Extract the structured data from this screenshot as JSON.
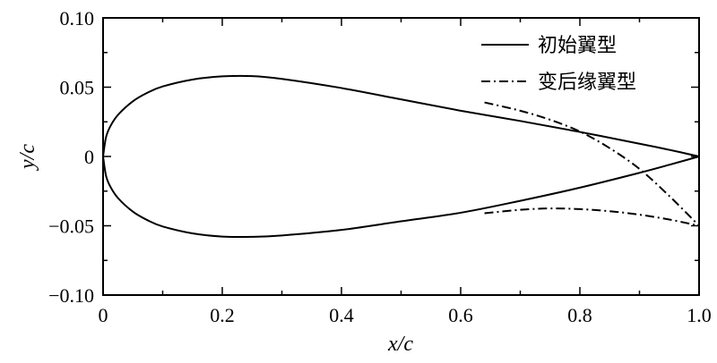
{
  "chart_data": {
    "type": "line",
    "xlabel": "x/c",
    "ylabel": "y/c",
    "xlim": [
      0,
      1.0
    ],
    "ylim": [
      -0.1,
      0.1
    ],
    "x_ticks": [
      {
        "value": 0,
        "label": "0"
      },
      {
        "value": 0.2,
        "label": "0.2"
      },
      {
        "value": 0.4,
        "label": "0.4"
      },
      {
        "value": 0.6,
        "label": "0.6"
      },
      {
        "value": 0.8,
        "label": "0.8"
      },
      {
        "value": 1.0,
        "label": "1.0"
      }
    ],
    "y_ticks": [
      {
        "value": 0.1,
        "label": "0.10"
      },
      {
        "value": 0.05,
        "label": "0.05"
      },
      {
        "value": 0,
        "label": "0"
      },
      {
        "value": -0.05,
        "label": "-0.05"
      },
      {
        "value": -0.1,
        "label": "-0.10"
      }
    ],
    "grid": false,
    "legend_position": "top-right",
    "series": [
      {
        "name": "初始翼型",
        "style": "solid",
        "color": "#000000",
        "upper": [
          [
            1.0,
            0.0
          ],
          [
            0.95,
            0.0048
          ],
          [
            0.9,
            0.0092
          ],
          [
            0.8,
            0.0177
          ],
          [
            0.7,
            0.0256
          ],
          [
            0.6,
            0.033
          ],
          [
            0.5,
            0.0412
          ],
          [
            0.4,
            0.0494
          ],
          [
            0.3,
            0.056
          ],
          [
            0.25,
            0.058
          ],
          [
            0.2,
            0.0578
          ],
          [
            0.15,
            0.0555
          ],
          [
            0.1,
            0.0505
          ],
          [
            0.075,
            0.0461
          ],
          [
            0.05,
            0.0398
          ],
          [
            0.025,
            0.03
          ],
          [
            0.0125,
            0.022
          ],
          [
            0.005,
            0.014
          ],
          [
            0.0,
            0.0
          ]
        ],
        "lower": [
          [
            0.0,
            0.0
          ],
          [
            0.005,
            -0.014
          ],
          [
            0.0125,
            -0.022
          ],
          [
            0.025,
            -0.03
          ],
          [
            0.05,
            -0.0398
          ],
          [
            0.075,
            -0.0461
          ],
          [
            0.1,
            -0.0505
          ],
          [
            0.15,
            -0.0555
          ],
          [
            0.2,
            -0.0578
          ],
          [
            0.25,
            -0.058
          ],
          [
            0.3,
            -0.057
          ],
          [
            0.4,
            -0.053
          ],
          [
            0.5,
            -0.0468
          ],
          [
            0.6,
            -0.0406
          ],
          [
            0.7,
            -0.032
          ],
          [
            0.8,
            -0.0225
          ],
          [
            0.9,
            -0.0118
          ],
          [
            0.95,
            -0.006
          ],
          [
            1.0,
            0.0
          ]
        ]
      },
      {
        "name": "变后缘翼型",
        "style": "dashdot",
        "color": "#000000",
        "upper": [
          [
            0.64,
            0.039
          ],
          [
            0.7,
            0.033
          ],
          [
            0.75,
            0.0265
          ],
          [
            0.8,
            0.018
          ],
          [
            0.85,
            0.006
          ],
          [
            0.9,
            -0.009
          ],
          [
            0.95,
            -0.0285
          ],
          [
            1.0,
            -0.05
          ]
        ],
        "lower": [
          [
            0.64,
            -0.041
          ],
          [
            0.7,
            -0.0385
          ],
          [
            0.75,
            -0.0375
          ],
          [
            0.8,
            -0.038
          ],
          [
            0.85,
            -0.0395
          ],
          [
            0.9,
            -0.042
          ],
          [
            0.95,
            -0.0455
          ],
          [
            1.0,
            -0.05
          ]
        ]
      }
    ]
  }
}
